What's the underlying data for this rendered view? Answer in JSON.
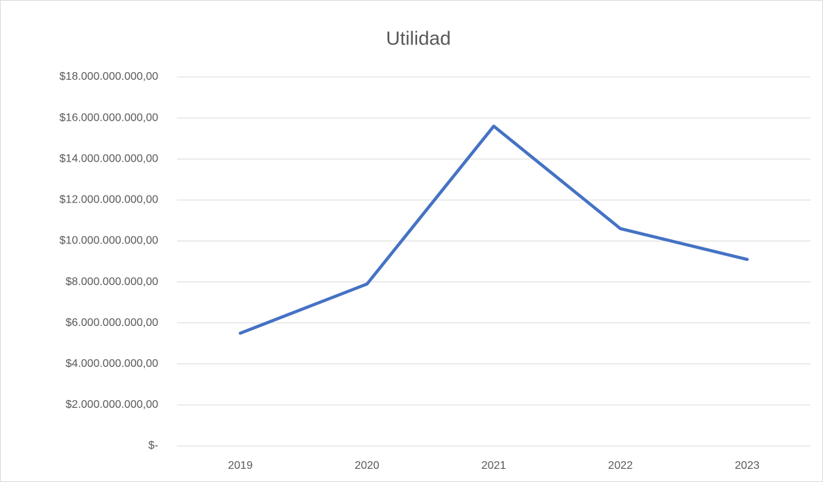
{
  "chart_data": {
    "type": "line",
    "title": "Utilidad",
    "categories": [
      "2019",
      "2020",
      "2021",
      "2022",
      "2023"
    ],
    "series": [
      {
        "name": "Utilidad",
        "color": "#4472c4",
        "values": [
          5500000000,
          7900000000,
          15600000000,
          10600000000,
          9100000000
        ]
      }
    ],
    "ylim": [
      0,
      18000000000
    ],
    "yticks": [
      {
        "value": 0,
        "label": "$-"
      },
      {
        "value": 2000000000,
        "label": "$2.000.000.000,00"
      },
      {
        "value": 4000000000,
        "label": "$4.000.000.000,00"
      },
      {
        "value": 6000000000,
        "label": "$6.000.000.000,00"
      },
      {
        "value": 8000000000,
        "label": "$8.000.000.000,00"
      },
      {
        "value": 10000000000,
        "label": "$10.000.000.000,00"
      },
      {
        "value": 12000000000,
        "label": "$12.000.000.000,00"
      },
      {
        "value": 14000000000,
        "label": "$14.000.000.000,00"
      },
      {
        "value": 16000000000,
        "label": "$16.000.000.000,00"
      },
      {
        "value": 18000000000,
        "label": "$18.000.000.000,00"
      }
    ],
    "grid": true
  }
}
